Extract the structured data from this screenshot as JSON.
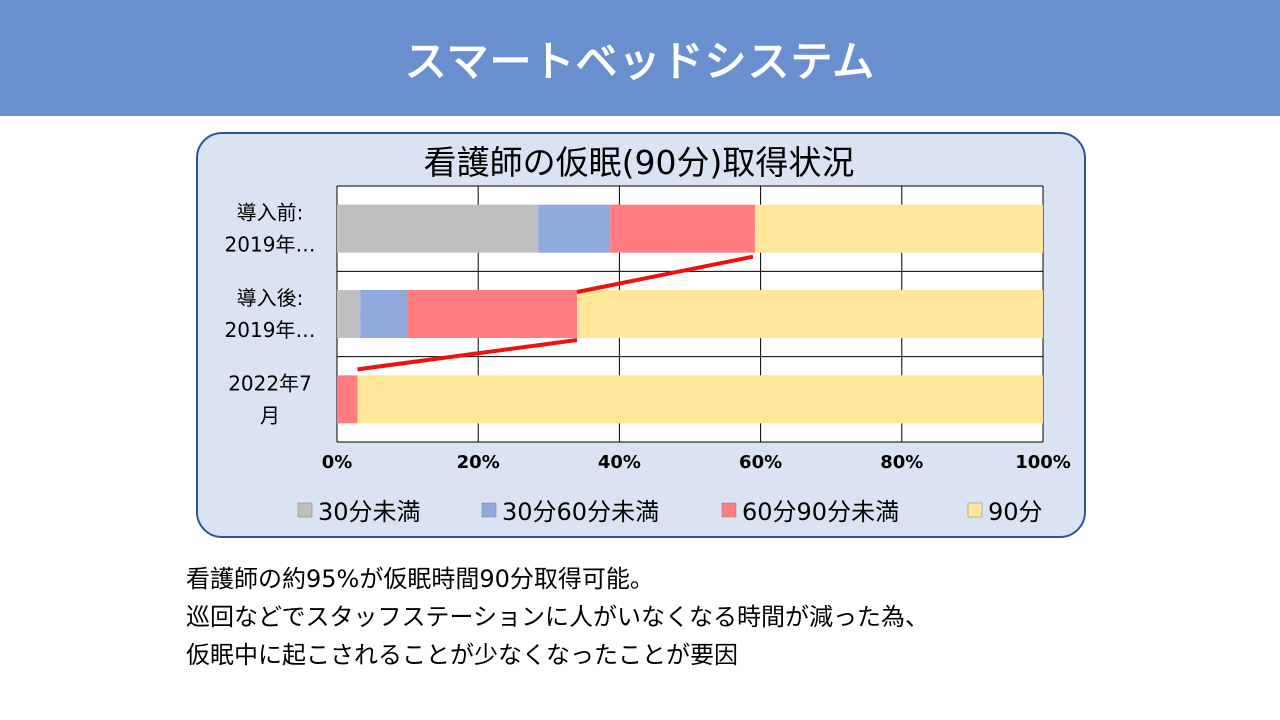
{
  "header": {
    "title": "スマートベッドシステム"
  },
  "chart_data": {
    "type": "bar",
    "orientation": "horizontal",
    "stacked": "percent",
    "title": "看護師の仮眠(90分)取得状況",
    "categories": [
      [
        "導入前:",
        "2019年…"
      ],
      [
        "導入後:",
        "2019年…"
      ],
      [
        "2022年7",
        "月"
      ]
    ],
    "series": [
      {
        "name": "30分未満",
        "color": "#bfbfbf",
        "values": [
          28.5,
          3.3,
          0
        ]
      },
      {
        "name": "30分60分未満",
        "color": "#8faadc",
        "values": [
          10.2,
          6.6,
          0
        ]
      },
      {
        "name": "60分90分未満",
        "color": "#ff7c80",
        "values": [
          20.5,
          24.1,
          2.9
        ]
      },
      {
        "name": "90分",
        "color": "#ffe699",
        "values": [
          40.8,
          66.0,
          97.1
        ]
      }
    ],
    "xlim": [
      0,
      100
    ],
    "xticks": [
      "0%",
      "20%",
      "40%",
      "60%",
      "80%",
      "100%"
    ],
    "grid": true,
    "legend": "bottom",
    "annotation": {
      "type": "trend-line",
      "color": "#ee1111"
    }
  },
  "caption": {
    "lines": [
      "看護師の約95%が仮眠時間90分取得可能。",
      "巡回などでスタッフステーションに人がいなくなる時間が減った為、",
      "仮眠中に起こされることが少なくなったことが要因"
    ]
  }
}
